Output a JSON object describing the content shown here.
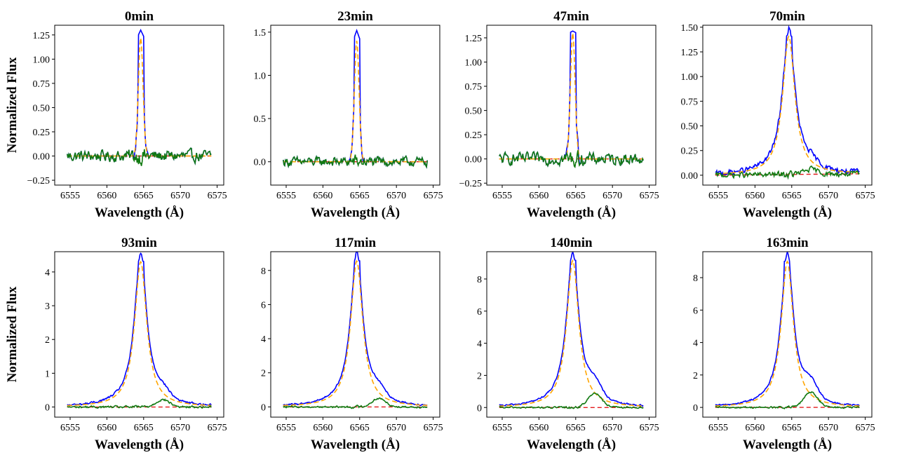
{
  "figure": {
    "xlabel": "Wavelength (Å)",
    "ylabel": "Normalized Flux"
  },
  "colors": {
    "observed": "#0000ff",
    "fit": "#ffa500",
    "continuum": "#e31a1c",
    "residual": "#117a11"
  },
  "chart_data": [
    {
      "type": "line",
      "title": "0min",
      "xlabel": "Wavelength (Å)",
      "ylabel": "Normalized Flux",
      "xlim": [
        6552.9,
        6575.9
      ],
      "ylim": [
        -0.3,
        1.35
      ],
      "xticks": [
        6555,
        6560,
        6565,
        6570,
        6575
      ],
      "yticks": [
        -0.25,
        0.0,
        0.25,
        0.5,
        0.75,
        1.0,
        1.25
      ],
      "ytick_labels": [
        "−0.25",
        "0.00",
        "0.25",
        "0.50",
        "0.75",
        "1.00",
        "1.25"
      ],
      "line": {
        "peak": 1.3,
        "center": 6564.6,
        "broad": 0.0,
        "bump": 0.0,
        "cont": 0.0,
        "noise": 0.09,
        "fit_peak": 1.22
      }
    },
    {
      "type": "line",
      "title": "23min",
      "xlabel": "Wavelength (Å)",
      "ylabel": "",
      "xlim": [
        6552.9,
        6575.9
      ],
      "ylim": [
        -0.27,
        1.58
      ],
      "xticks": [
        6555,
        6560,
        6565,
        6570,
        6575
      ],
      "yticks": [
        0.0,
        0.5,
        1.0,
        1.5
      ],
      "ytick_labels": [
        "0.0",
        "0.5",
        "1.0",
        "1.5"
      ],
      "line": {
        "peak": 1.52,
        "center": 6564.6,
        "broad": 0.0,
        "bump": 0.0,
        "cont": 0.0,
        "noise": 0.08,
        "fit_peak": 1.4
      }
    },
    {
      "type": "line",
      "title": "47min",
      "xlabel": "Wavelength (Å)",
      "ylabel": "",
      "xlim": [
        6552.9,
        6575.9
      ],
      "ylim": [
        -0.27,
        1.38
      ],
      "xticks": [
        6555,
        6560,
        6565,
        6570,
        6575
      ],
      "yticks": [
        -0.25,
        0.0,
        0.25,
        0.5,
        0.75,
        1.0,
        1.25
      ],
      "ytick_labels": [
        "−0.25",
        "0.00",
        "0.25",
        "0.50",
        "0.75",
        "1.00",
        "1.25"
      ],
      "line": {
        "peak": 1.32,
        "center": 6564.6,
        "broad": 0.0,
        "bump": 0.0,
        "cont": 0.0,
        "noise": 0.09,
        "fit_peak": 1.3
      }
    },
    {
      "type": "line",
      "title": "70min",
      "xlabel": "Wavelength (Å)",
      "ylabel": "",
      "xlim": [
        6552.9,
        6575.9
      ],
      "ylim": [
        -0.1,
        1.52
      ],
      "xticks": [
        6555,
        6560,
        6565,
        6570,
        6575
      ],
      "yticks": [
        0.0,
        0.25,
        0.5,
        0.75,
        1.0,
        1.25,
        1.5
      ],
      "ytick_labels": [
        "0.00",
        "0.25",
        "0.50",
        "0.75",
        "1.00",
        "1.25",
        "1.50"
      ],
      "line": {
        "peak": 1.43,
        "center": 6564.6,
        "broad": 0.2,
        "bump": 0.05,
        "cont": 0.03,
        "noise": 0.04,
        "fit_peak": 1.4
      }
    },
    {
      "type": "line",
      "title": "93min",
      "xlabel": "Wavelength (Å)",
      "ylabel": "Normalized Flux",
      "xlim": [
        6552.9,
        6575.9
      ],
      "ylim": [
        -0.3,
        4.6
      ],
      "xticks": [
        6555,
        6560,
        6565,
        6570,
        6575
      ],
      "yticks": [
        0,
        1,
        2,
        3,
        4
      ],
      "ytick_labels": [
        "0",
        "1",
        "2",
        "3",
        "4"
      ],
      "line": {
        "peak": 4.35,
        "center": 6564.6,
        "broad": 0.35,
        "bump": 0.22,
        "cont": 0.0,
        "noise": 0.05,
        "fit_peak": 4.3
      }
    },
    {
      "type": "line",
      "title": "117min",
      "xlabel": "Wavelength (Å)",
      "ylabel": "",
      "xlim": [
        6552.9,
        6575.9
      ],
      "ylim": [
        -0.6,
        9.1
      ],
      "xticks": [
        6555,
        6560,
        6565,
        6570,
        6575
      ],
      "yticks": [
        0,
        2,
        4,
        6,
        8
      ],
      "ytick_labels": [
        "0",
        "2",
        "4",
        "6",
        "8"
      ],
      "line": {
        "peak": 8.6,
        "center": 6564.6,
        "broad": 0.35,
        "bump": 0.5,
        "cont": 0.0,
        "noise": 0.08,
        "fit_peak": 8.55
      }
    },
    {
      "type": "line",
      "title": "140min",
      "xlabel": "Wavelength (Å)",
      "ylabel": "",
      "xlim": [
        6552.9,
        6575.9
      ],
      "ylim": [
        -0.6,
        9.7
      ],
      "xticks": [
        6555,
        6560,
        6565,
        6570,
        6575
      ],
      "yticks": [
        0,
        2,
        4,
        6,
        8
      ],
      "ytick_labels": [
        "0",
        "2",
        "4",
        "6",
        "8"
      ],
      "line": {
        "peak": 9.2,
        "center": 6564.6,
        "broad": 0.5,
        "bump": 0.9,
        "cont": 0.0,
        "noise": 0.08,
        "fit_peak": 9.15
      }
    },
    {
      "type": "line",
      "title": "163min",
      "xlabel": "Wavelength (Å)",
      "ylabel": "",
      "xlim": [
        6552.9,
        6575.9
      ],
      "ylim": [
        -0.6,
        9.6
      ],
      "xticks": [
        6555,
        6560,
        6565,
        6570,
        6575
      ],
      "yticks": [
        0,
        2,
        4,
        6,
        8
      ],
      "ytick_labels": [
        "0",
        "2",
        "4",
        "6",
        "8"
      ],
      "line": {
        "peak": 9.05,
        "center": 6564.4,
        "broad": 0.55,
        "bump": 0.95,
        "cont": 0.0,
        "noise": 0.08,
        "fit_peak": 9.0
      }
    }
  ]
}
